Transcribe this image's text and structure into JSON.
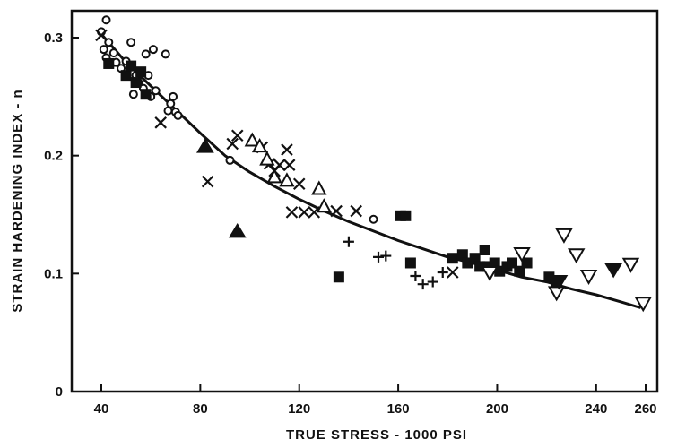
{
  "chart_data": {
    "type": "scatter",
    "xlabel": "TRUE STRESS - 1000 PSI",
    "ylabel": "STRAIN HARDENING INDEX - n",
    "xlim": [
      30,
      260
    ],
    "ylim": [
      0,
      0.32
    ],
    "x_ticks": [
      40,
      80,
      120,
      160,
      200,
      240,
      260
    ],
    "y_ticks": [
      0,
      0.1,
      0.2,
      0.3
    ],
    "x_tick_labels": [
      "40",
      "80",
      "120",
      "160",
      "200",
      "240",
      "260"
    ],
    "y_tick_labels": [
      "0",
      "0.1",
      "0.2",
      "0.3"
    ],
    "grid": false,
    "legend": "none",
    "ink_color": "#111111",
    "series": [
      {
        "marker": "circle-open",
        "points": [
          [
            40,
            0.305
          ],
          [
            41,
            0.29
          ],
          [
            42,
            0.315
          ],
          [
            42,
            0.283
          ],
          [
            43,
            0.296
          ],
          [
            44,
            0.278
          ],
          [
            45,
            0.287
          ],
          [
            46,
            0.279
          ],
          [
            48,
            0.274
          ],
          [
            50,
            0.28
          ],
          [
            52,
            0.296
          ],
          [
            53,
            0.252
          ],
          [
            54,
            0.268
          ],
          [
            55,
            0.262
          ],
          [
            57,
            0.257
          ],
          [
            58,
            0.286
          ],
          [
            59,
            0.268
          ],
          [
            60,
            0.25
          ],
          [
            61,
            0.29
          ],
          [
            62,
            0.255
          ],
          [
            66,
            0.286
          ],
          [
            67,
            0.238
          ],
          [
            68,
            0.244
          ],
          [
            69,
            0.25
          ],
          [
            70,
            0.237
          ],
          [
            71,
            0.234
          ],
          [
            92,
            0.196
          ],
          [
            150,
            0.146
          ]
        ]
      },
      {
        "marker": "x",
        "points": [
          [
            40,
            0.302
          ],
          [
            64,
            0.228
          ],
          [
            83,
            0.178
          ],
          [
            93,
            0.21
          ],
          [
            95,
            0.217
          ],
          [
            105,
            0.207
          ],
          [
            108,
            0.193
          ],
          [
            110,
            0.187
          ],
          [
            112,
            0.192
          ],
          [
            115,
            0.205
          ],
          [
            116,
            0.192
          ],
          [
            117,
            0.152
          ],
          [
            120,
            0.176
          ],
          [
            122,
            0.152
          ],
          [
            126,
            0.152
          ],
          [
            135,
            0.153
          ],
          [
            143,
            0.153
          ],
          [
            182,
            0.101
          ]
        ]
      },
      {
        "marker": "triangle-open",
        "points": [
          [
            101,
            0.213
          ],
          [
            104,
            0.208
          ],
          [
            107,
            0.197
          ],
          [
            110,
            0.182
          ],
          [
            115,
            0.179
          ],
          [
            128,
            0.172
          ],
          [
            130,
            0.157
          ]
        ]
      },
      {
        "marker": "triangle-filled",
        "points": [
          [
            82,
            0.208
          ],
          [
            95,
            0.136
          ]
        ]
      },
      {
        "marker": "plus",
        "points": [
          [
            140,
            0.127
          ],
          [
            152,
            0.114
          ],
          [
            155,
            0.115
          ],
          [
            167,
            0.098
          ],
          [
            170,
            0.091
          ],
          [
            174,
            0.093
          ],
          [
            178,
            0.101
          ]
        ]
      },
      {
        "marker": "square-filled",
        "points": [
          [
            43,
            0.278
          ],
          [
            50,
            0.268
          ],
          [
            52,
            0.276
          ],
          [
            54,
            0.262
          ],
          [
            56,
            0.271
          ],
          [
            58,
            0.252
          ],
          [
            136,
            0.097
          ],
          [
            161,
            0.149
          ],
          [
            163,
            0.149
          ],
          [
            165,
            0.109
          ],
          [
            182,
            0.113
          ],
          [
            186,
            0.116
          ],
          [
            188,
            0.109
          ],
          [
            191,
            0.113
          ],
          [
            193,
            0.106
          ],
          [
            195,
            0.12
          ],
          [
            196,
            0.106
          ],
          [
            199,
            0.109
          ],
          [
            201,
            0.102
          ],
          [
            204,
            0.106
          ],
          [
            206,
            0.109
          ],
          [
            209,
            0.102
          ],
          [
            212,
            0.109
          ],
          [
            221,
            0.097
          ],
          [
            224,
            0.092
          ]
        ]
      },
      {
        "marker": "triangle-down-open",
        "points": [
          [
            197,
            0.101
          ],
          [
            210,
            0.117
          ],
          [
            224,
            0.084
          ],
          [
            227,
            0.133
          ],
          [
            232,
            0.116
          ],
          [
            237,
            0.098
          ],
          [
            254,
            0.108
          ],
          [
            259,
            0.075
          ]
        ]
      },
      {
        "marker": "triangle-down-filled",
        "points": [
          [
            225,
            0.093
          ],
          [
            247,
            0.103
          ]
        ]
      }
    ],
    "trend_line": {
      "type": "fit-curve",
      "x": [
        40,
        50,
        60,
        70,
        80,
        90,
        100,
        110,
        120,
        130,
        140,
        150,
        160,
        170,
        180,
        190,
        200,
        210,
        220,
        230,
        240,
        250,
        258
      ],
      "y": [
        0.303,
        0.279,
        0.259,
        0.239,
        0.219,
        0.2,
        0.186,
        0.174,
        0.163,
        0.153,
        0.144,
        0.136,
        0.128,
        0.121,
        0.114,
        0.109,
        0.103,
        0.097,
        0.093,
        0.087,
        0.082,
        0.076,
        0.071
      ]
    }
  }
}
